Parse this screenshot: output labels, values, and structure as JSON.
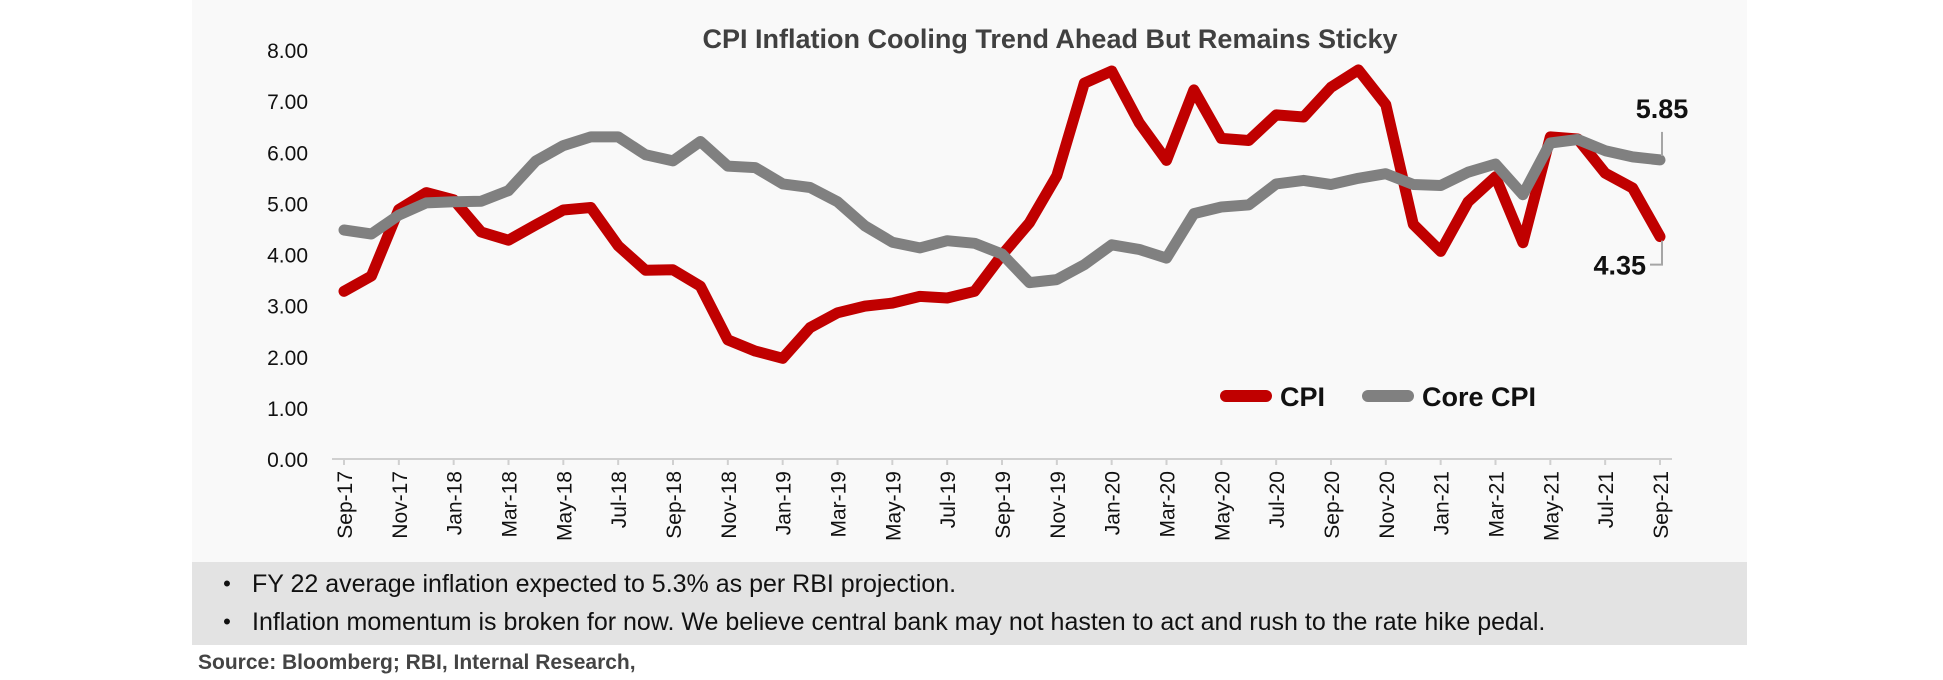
{
  "chart_data": {
    "type": "line",
    "title": "CPI Inflation Cooling Trend Ahead But Remains Sticky",
    "xlabel": "",
    "ylabel": "",
    "ylim": [
      0,
      8
    ],
    "y_ticks": [
      "0.00",
      "1.00",
      "2.00",
      "3.00",
      "4.00",
      "5.00",
      "6.00",
      "7.00",
      "8.00"
    ],
    "x": [
      "Sep-17",
      "Oct-17",
      "Nov-17",
      "Dec-17",
      "Jan-18",
      "Feb-18",
      "Mar-18",
      "Apr-18",
      "May-18",
      "Jun-18",
      "Jul-18",
      "Aug-18",
      "Sep-18",
      "Oct-18",
      "Nov-18",
      "Dec-18",
      "Jan-19",
      "Feb-19",
      "Mar-19",
      "Apr-19",
      "May-19",
      "Jun-19",
      "Jul-19",
      "Aug-19",
      "Sep-19",
      "Oct-19",
      "Nov-19",
      "Dec-19",
      "Jan-20",
      "Feb-20",
      "Mar-20",
      "Apr-20",
      "May-20",
      "Jun-20",
      "Jul-20",
      "Aug-20",
      "Sep-20",
      "Oct-20",
      "Nov-20",
      "Dec-20",
      "Jan-21",
      "Feb-21",
      "Mar-21",
      "Apr-21",
      "May-21",
      "Jun-21",
      "Jul-21",
      "Aug-21",
      "Sep-21"
    ],
    "x_tick_labels": [
      "Sep-17",
      "Nov-17",
      "Jan-18",
      "Mar-18",
      "May-18",
      "Jul-18",
      "Sep-18",
      "Nov-18",
      "Jan-19",
      "Mar-19",
      "May-19",
      "Jul-19",
      "Sep-19",
      "Nov-19",
      "Jan-20",
      "Mar-20",
      "May-20",
      "Jul-20",
      "Sep-20",
      "Nov-20",
      "Jan-21",
      "Mar-21",
      "May-21",
      "Jul-21",
      "Sep-21"
    ],
    "series": [
      {
        "name": "CPI",
        "color": "#c00000",
        "values": [
          3.28,
          3.58,
          4.88,
          5.21,
          5.07,
          4.44,
          4.28,
          4.58,
          4.87,
          4.92,
          4.17,
          3.69,
          3.7,
          3.38,
          2.33,
          2.11,
          1.97,
          2.57,
          2.86,
          2.99,
          3.05,
          3.18,
          3.15,
          3.28,
          3.99,
          4.62,
          5.54,
          7.35,
          7.59,
          6.58,
          5.84,
          7.22,
          6.27,
          6.23,
          6.73,
          6.69,
          7.27,
          7.61,
          6.93,
          4.59,
          4.06,
          5.03,
          5.52,
          4.23,
          6.3,
          6.26,
          5.59,
          5.3,
          4.35
        ]
      },
      {
        "name": "Core CPI",
        "color": "#808080",
        "values": [
          4.48,
          4.4,
          4.77,
          5.01,
          5.03,
          5.04,
          5.25,
          5.83,
          6.13,
          6.3,
          6.3,
          5.95,
          5.83,
          6.21,
          5.73,
          5.7,
          5.38,
          5.31,
          5.03,
          4.56,
          4.24,
          4.13,
          4.27,
          4.22,
          4.01,
          3.45,
          3.51,
          3.8,
          4.19,
          4.1,
          3.93,
          4.8,
          4.93,
          4.97,
          5.38,
          5.45,
          5.37,
          5.49,
          5.58,
          5.37,
          5.35,
          5.61,
          5.77,
          5.17,
          6.18,
          6.25,
          6.03,
          5.91,
          5.85
        ]
      }
    ],
    "annotations": [
      {
        "series": "Core CPI",
        "label": "5.85"
      },
      {
        "series": "CPI",
        "label": "4.35"
      }
    ],
    "legend_position": "bottom-right",
    "grid": false
  },
  "notes": {
    "bullets": [
      "FY 22 average inflation expected to 5.3% as per RBI projection.",
      "Inflation momentum is broken for now. We believe central bank may not hasten to act and rush to the rate hike pedal."
    ],
    "bullet_symbol": "•",
    "source": "Source: Bloomberg; RBI, Internal Research,"
  }
}
